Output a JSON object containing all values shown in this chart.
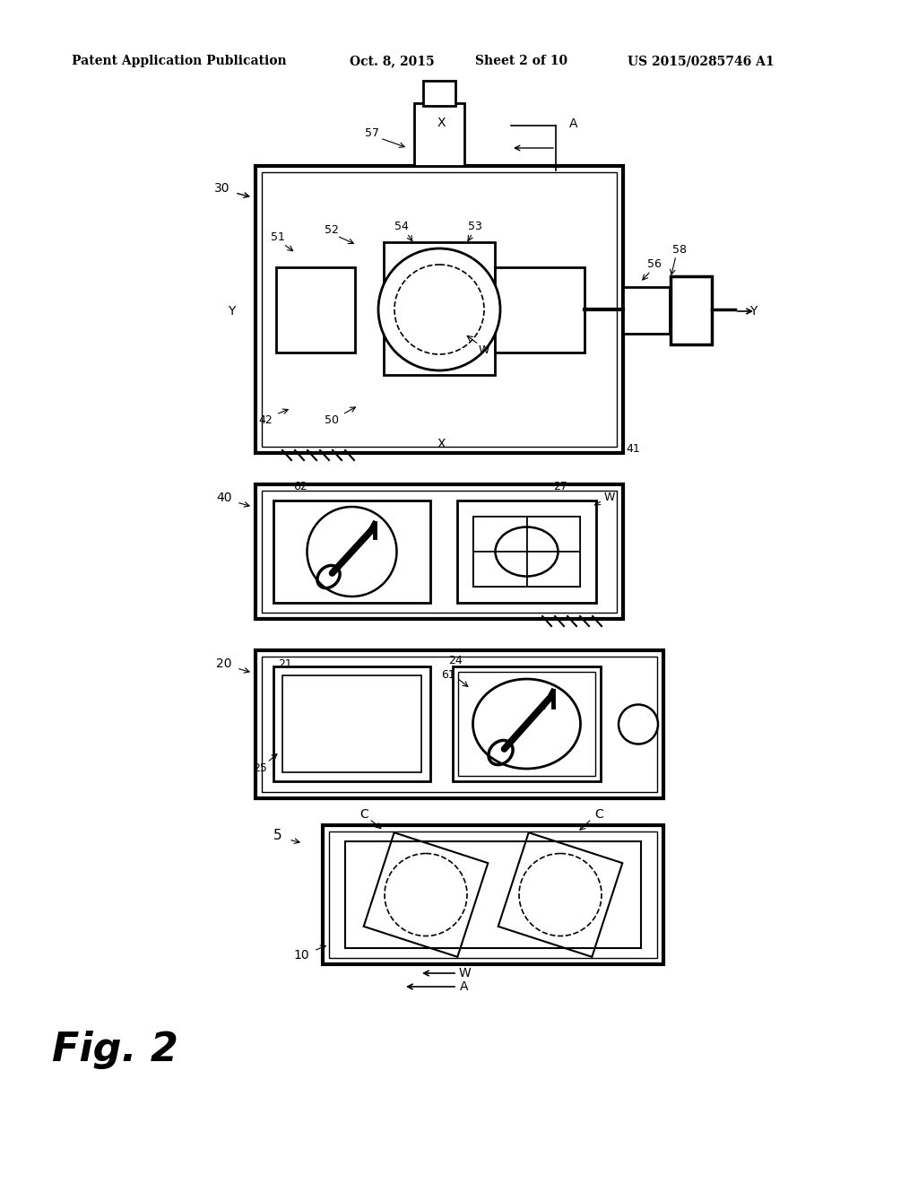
{
  "bg_color": "#ffffff",
  "line_color": "#000000",
  "header_text": "Patent Application Publication",
  "header_date": "Oct. 8, 2015",
  "header_sheet": "Sheet 2 of 10",
  "header_patent": "US 2015/0285746 A1",
  "fig_label": "Fig. 2"
}
